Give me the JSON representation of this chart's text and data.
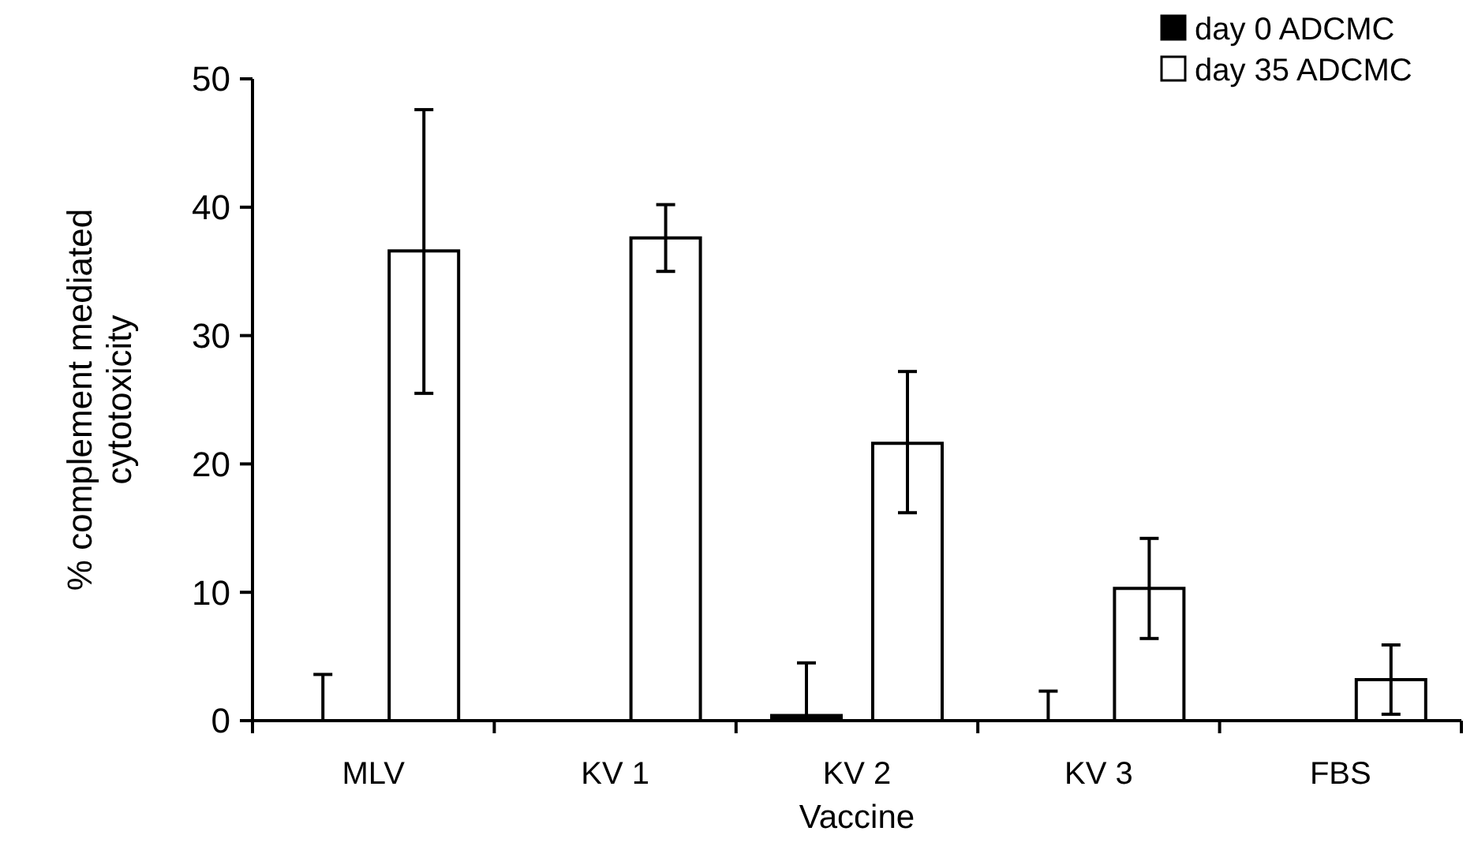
{
  "chart_data": {
    "type": "bar",
    "xlabel": "Vaccine",
    "ylabel": "% complement mediated cytotoxicity",
    "categories": [
      "MLV",
      "KV 1",
      "KV 2",
      "KV 3",
      "FBS"
    ],
    "series": [
      {
        "name": "day 0 ADCMC",
        "color": "#000000",
        "values": [
          0,
          0,
          0.4,
          0,
          0
        ],
        "errors": [
          [
            0,
            3.6
          ],
          null,
          [
            0,
            4.5
          ],
          [
            0,
            2.3
          ],
          null
        ]
      },
      {
        "name": "day 35 ADCMC",
        "color": "#ffffff",
        "values": [
          36.6,
          37.6,
          21.6,
          10.3,
          3.2
        ],
        "errors": [
          [
            25.5,
            47.6
          ],
          [
            35.0,
            40.2
          ],
          [
            16.2,
            27.2
          ],
          [
            6.4,
            14.2
          ],
          [
            0.5,
            5.9
          ]
        ]
      }
    ],
    "ylim": [
      0,
      50
    ],
    "yticks": [
      0,
      10,
      20,
      30,
      40,
      50
    ],
    "grid": false,
    "legend": "top right"
  }
}
